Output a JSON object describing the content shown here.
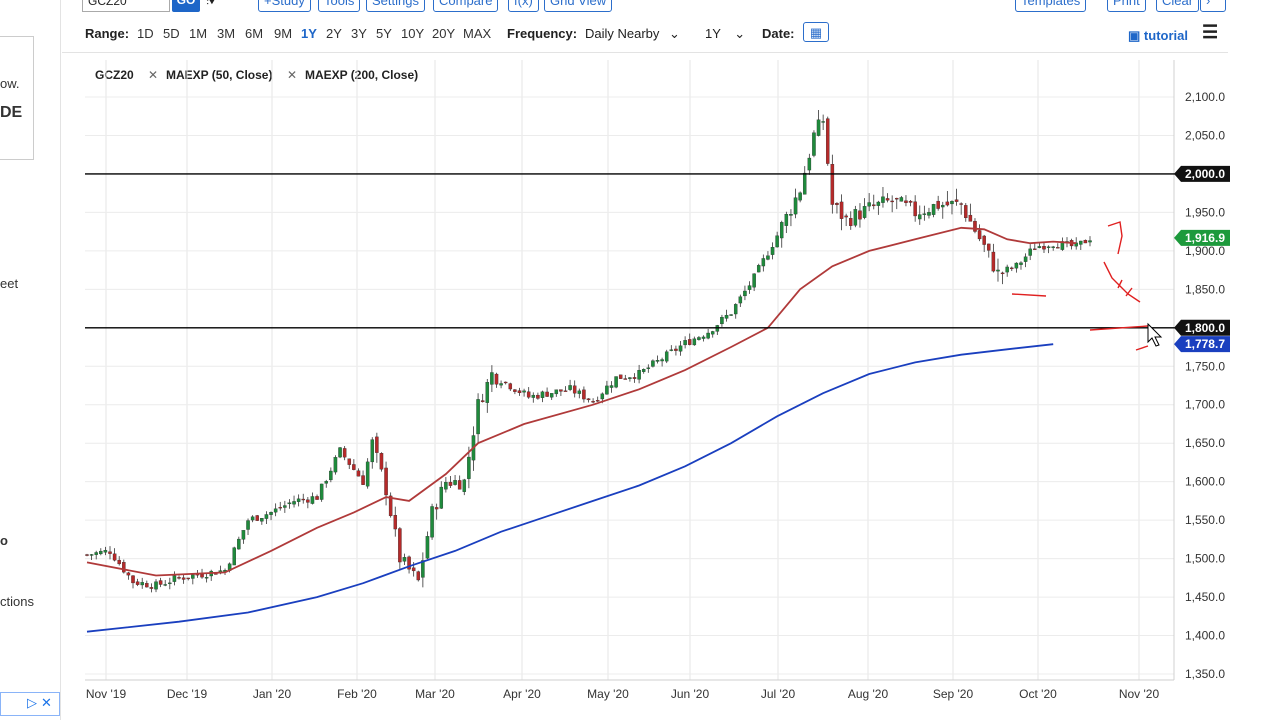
{
  "top_toolbar": {
    "symbol_value": "GCZ20",
    "go_label": "GO",
    "buttons": [
      "+Study",
      "Tools",
      "Settings",
      "Compare",
      "f(x)",
      "Grid View",
      "Templates",
      "Print",
      "Clear"
    ]
  },
  "range_bar": {
    "range_label": "Range:",
    "ranges": [
      "1D",
      "5D",
      "1M",
      "3M",
      "6M",
      "9M",
      "1Y",
      "2Y",
      "3Y",
      "5Y",
      "10Y",
      "20Y",
      "MAX"
    ],
    "active_range": "1Y",
    "frequency_label": "Frequency:",
    "frequency_value": "Daily Nearby",
    "period_value": "1Y",
    "date_label": "Date:",
    "tutorial_label": "tutorial"
  },
  "left_panel": {
    "fragments": [
      "ow.",
      "DE",
      "eet",
      "o",
      "ctions"
    ]
  },
  "legend": {
    "symbol": "GCZ20",
    "studies": [
      "MAEXP (50, Close)",
      "MAEXP (200, Close)"
    ]
  },
  "colors": {
    "accent": "#1e66c8",
    "up_candle": "#1f8a3c",
    "down_candle": "#b52a2a",
    "ma50": "#b03a3a",
    "ma200": "#1a3fbf",
    "last_price_badge": "#1d9a3c",
    "annotation": "#e02020"
  },
  "chart_data": {
    "type": "candlestick",
    "symbol": "GCZ20",
    "x_ticks": [
      "Nov '19",
      "Dec '19",
      "Jan '20",
      "Feb '20",
      "Mar '20",
      "Apr '20",
      "May '20",
      "Jun '20",
      "Jul '20",
      "Aug '20",
      "Sep '20",
      "Oct '20",
      "Nov '20"
    ],
    "y_ticks": [
      "2,100.0",
      "2,050.0",
      "2,000.0",
      "1,950.0",
      "1,900.0",
      "1,850.0",
      "1,800.0",
      "1,750.0",
      "1,700.0",
      "1,650.0",
      "1,600.0",
      "1,550.0",
      "1,500.0",
      "1,450.0",
      "1,400.0",
      "1,350.0"
    ],
    "ylim": [
      1335,
      2130
    ],
    "last_price": 1916.9,
    "last_price_label": "1,916.9",
    "ma200_last": 1778.7,
    "ma200_last_label": "1,778.7",
    "horizontal_lines": [
      {
        "value": 2000.0,
        "label": "2,000.0"
      },
      {
        "value": 1800.0,
        "label": "1,800.0"
      }
    ],
    "close_path": [
      [
        0,
        1505
      ],
      [
        5,
        1510
      ],
      [
        10,
        1470
      ],
      [
        15,
        1465
      ],
      [
        20,
        1475
      ],
      [
        25,
        1480
      ],
      [
        30,
        1485
      ],
      [
        35,
        1550
      ],
      [
        40,
        1560
      ],
      [
        45,
        1575
      ],
      [
        50,
        1580
      ],
      [
        55,
        1640
      ],
      [
        60,
        1600
      ],
      [
        62,
        1650
      ],
      [
        65,
        1590
      ],
      [
        68,
        1500
      ],
      [
        72,
        1470
      ],
      [
        75,
        1560
      ],
      [
        78,
        1600
      ],
      [
        82,
        1600
      ],
      [
        85,
        1700
      ],
      [
        88,
        1740
      ],
      [
        92,
        1725
      ],
      [
        96,
        1710
      ],
      [
        100,
        1715
      ],
      [
        105,
        1720
      ],
      [
        110,
        1705
      ],
      [
        115,
        1735
      ],
      [
        120,
        1740
      ],
      [
        125,
        1760
      ],
      [
        130,
        1780
      ],
      [
        135,
        1795
      ],
      [
        140,
        1820
      ],
      [
        145,
        1865
      ],
      [
        150,
        1920
      ],
      [
        155,
        1980
      ],
      [
        158,
        2050
      ],
      [
        160,
        2070
      ],
      [
        162,
        1960
      ],
      [
        165,
        1940
      ],
      [
        170,
        1955
      ],
      [
        175,
        1965
      ],
      [
        180,
        1950
      ],
      [
        185,
        1960
      ],
      [
        190,
        1960
      ],
      [
        195,
        1905
      ],
      [
        198,
        1870
      ],
      [
        202,
        1880
      ],
      [
        206,
        1905
      ],
      [
        210,
        1910
      ],
      [
        215,
        1905
      ],
      [
        218,
        1917
      ]
    ],
    "ma50": [
      [
        0,
        1495
      ],
      [
        15,
        1478
      ],
      [
        30,
        1482
      ],
      [
        40,
        1510
      ],
      [
        50,
        1540
      ],
      [
        58,
        1560
      ],
      [
        65,
        1580
      ],
      [
        70,
        1575
      ],
      [
        78,
        1610
      ],
      [
        85,
        1650
      ],
      [
        95,
        1675
      ],
      [
        110,
        1700
      ],
      [
        120,
        1720
      ],
      [
        130,
        1745
      ],
      [
        140,
        1775
      ],
      [
        148,
        1800
      ],
      [
        155,
        1850
      ],
      [
        162,
        1880
      ],
      [
        170,
        1900
      ],
      [
        180,
        1915
      ],
      [
        190,
        1930
      ],
      [
        195,
        1928
      ],
      [
        200,
        1915
      ],
      [
        205,
        1910
      ],
      [
        210,
        1912
      ],
      [
        215,
        1910
      ]
    ],
    "ma200": [
      [
        0,
        1405
      ],
      [
        20,
        1418
      ],
      [
        35,
        1430
      ],
      [
        50,
        1450
      ],
      [
        60,
        1468
      ],
      [
        70,
        1490
      ],
      [
        80,
        1510
      ],
      [
        90,
        1535
      ],
      [
        100,
        1555
      ],
      [
        110,
        1575
      ],
      [
        120,
        1595
      ],
      [
        130,
        1620
      ],
      [
        140,
        1650
      ],
      [
        150,
        1685
      ],
      [
        160,
        1715
      ],
      [
        170,
        1740
      ],
      [
        180,
        1755
      ],
      [
        190,
        1765
      ],
      [
        200,
        1772
      ],
      [
        210,
        1778.7
      ]
    ]
  }
}
